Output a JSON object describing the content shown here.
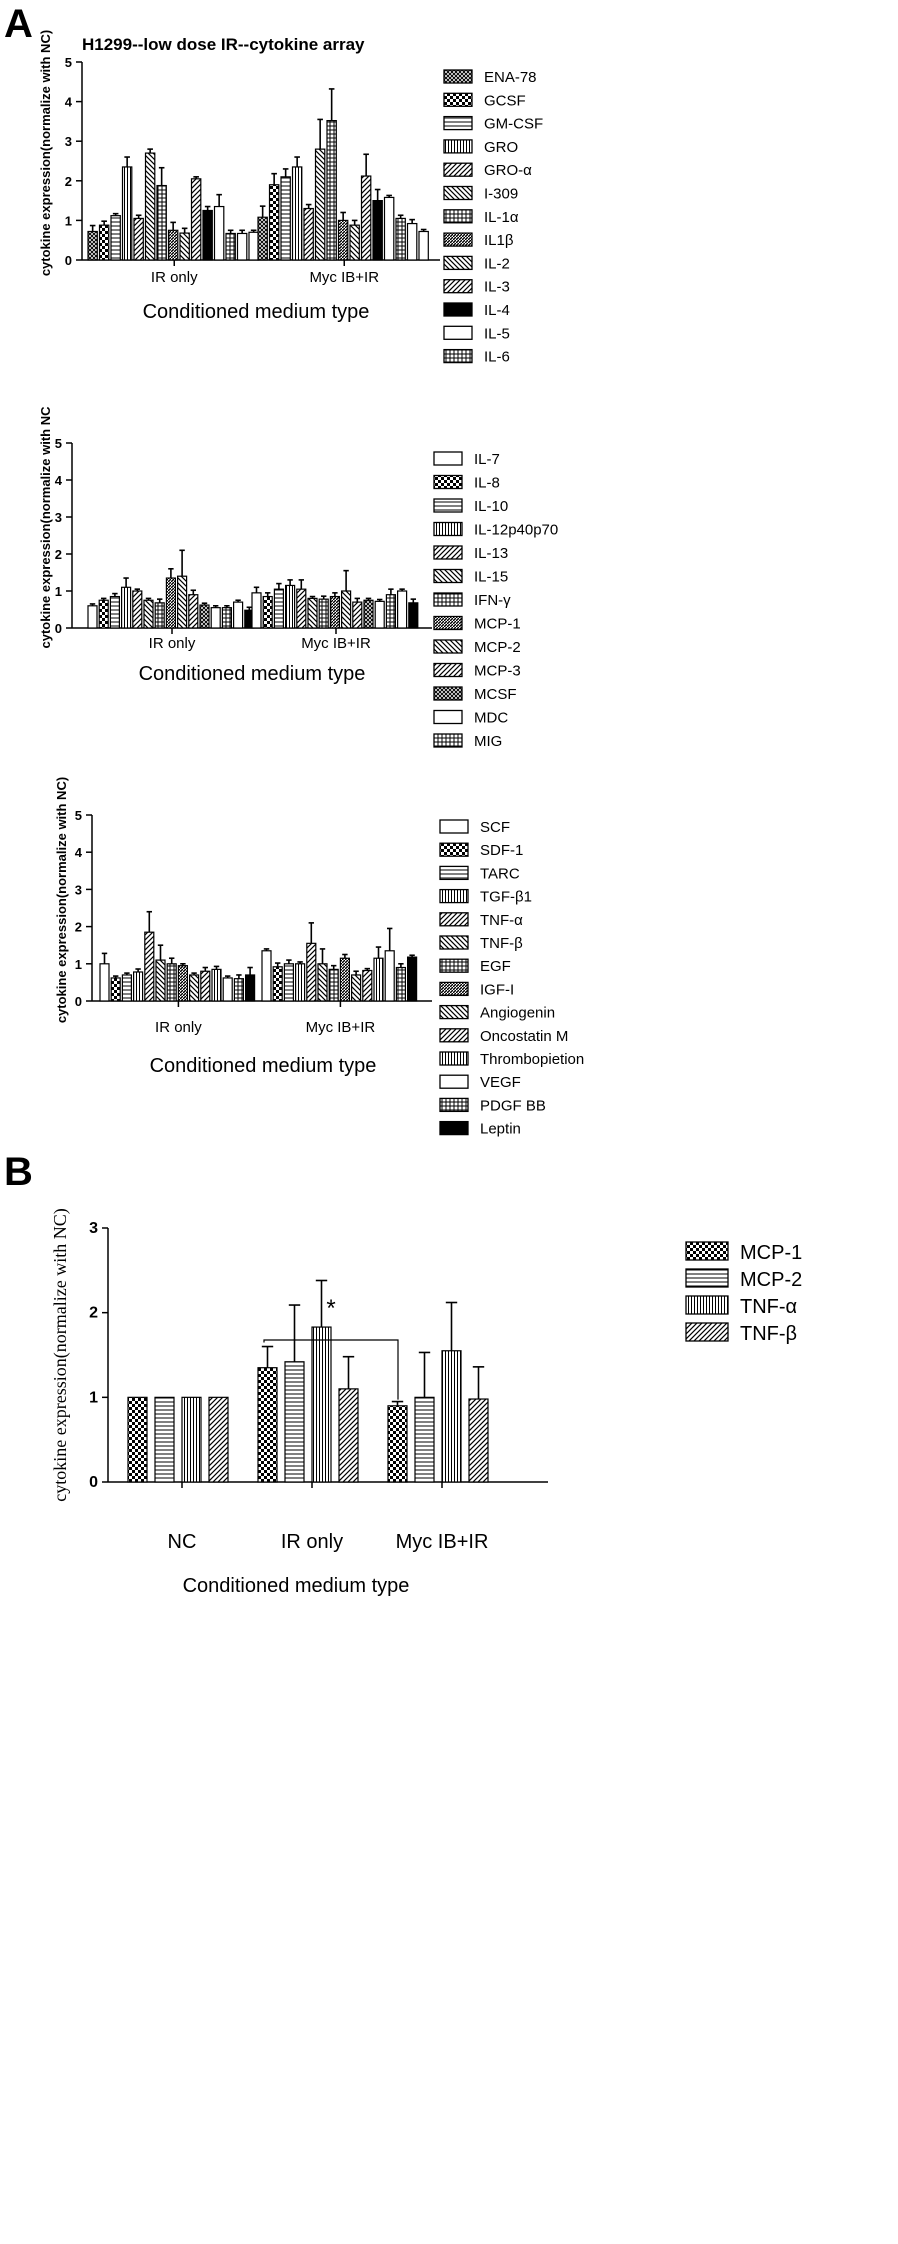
{
  "figure": {
    "panel_a_label": "A",
    "panel_b_label": "B"
  },
  "chart_data": [
    {
      "id": "a1",
      "type": "bar",
      "title": "H1299--low dose IR--cytokine array",
      "ylabel": "cytokine expression(normalize with NC)",
      "xlabel": "Conditioned medium type",
      "ylim": [
        0,
        5
      ],
      "yticks": [
        0,
        1,
        2,
        3,
        4,
        5
      ],
      "categories": [
        "IR only",
        "Myc IB+IR"
      ],
      "legend_position": "right",
      "series": [
        {
          "name": "ENA-78",
          "pattern": "crosshatch",
          "values": [
            0.72,
            1.08
          ],
          "errors": [
            0.15,
            0.28
          ]
        },
        {
          "name": "GCSF",
          "pattern": "checker",
          "values": [
            0.88,
            1.9
          ],
          "errors": [
            0.1,
            0.28
          ]
        },
        {
          "name": "GM-CSF",
          "pattern": "hlines",
          "values": [
            1.12,
            2.1
          ],
          "errors": [
            0.05,
            0.2
          ]
        },
        {
          "name": "GRO",
          "pattern": "vlines",
          "values": [
            2.35,
            2.35
          ],
          "errors": [
            0.25,
            0.25
          ]
        },
        {
          "name": "GRO-α",
          "pattern": "diag",
          "values": [
            1.05,
            1.3
          ],
          "errors": [
            0.08,
            0.1
          ]
        },
        {
          "name": "I-309",
          "pattern": "diagback",
          "values": [
            2.7,
            2.8
          ],
          "errors": [
            0.1,
            0.75
          ]
        },
        {
          "name": "IL-1α",
          "pattern": "grid",
          "values": [
            1.88,
            3.52
          ],
          "errors": [
            0.45,
            0.8
          ]
        },
        {
          "name": "IL1β",
          "pattern": "dense",
          "values": [
            0.75,
            1.0
          ],
          "errors": [
            0.2,
            0.2
          ]
        },
        {
          "name": "IL-2",
          "pattern": "diagback",
          "values": [
            0.68,
            0.88
          ],
          "errors": [
            0.12,
            0.12
          ]
        },
        {
          "name": "IL-3",
          "pattern": "diag",
          "values": [
            2.05,
            2.12
          ],
          "errors": [
            0.05,
            0.55
          ]
        },
        {
          "name": "IL-4",
          "pattern": "solid",
          "values": [
            1.25,
            1.5
          ],
          "errors": [
            0.1,
            0.28
          ]
        },
        {
          "name": "IL-5",
          "pattern": "empty",
          "values": [
            1.35,
            1.58
          ],
          "errors": [
            0.3,
            0.05
          ]
        },
        {
          "name": "IL-6",
          "pattern": "grid",
          "values": [
            0.67,
            1.05
          ],
          "errors": [
            0.08,
            0.08
          ]
        }
      ],
      "extra_bars": [
        {
          "values": [
            0.67,
            0.92
          ],
          "errors": [
            0.08,
            0.1
          ],
          "pattern": "empty"
        },
        {
          "values": [
            0.7,
            0.72
          ],
          "errors": [
            0.05,
            0.05
          ],
          "pattern": "empty"
        }
      ]
    },
    {
      "id": "a2",
      "type": "bar",
      "ylabel": "cytokine expression(normalize with NC",
      "xlabel": "Conditioned medium type",
      "ylim": [
        0,
        5
      ],
      "yticks": [
        0,
        1,
        2,
        3,
        4,
        5
      ],
      "categories": [
        "IR only",
        "Myc IB+IR"
      ],
      "legend_position": "right",
      "series": [
        {
          "name": "IL-7",
          "pattern": "empty",
          "values": [
            0.6,
            0.95
          ],
          "errors": [
            0.05,
            0.15
          ]
        },
        {
          "name": "IL-8",
          "pattern": "checker",
          "values": [
            0.75,
            0.85
          ],
          "errors": [
            0.05,
            0.1
          ]
        },
        {
          "name": "IL-10",
          "pattern": "hlines",
          "values": [
            0.85,
            1.05
          ],
          "errors": [
            0.08,
            0.15
          ]
        },
        {
          "name": "IL-12p40p70",
          "pattern": "vlines",
          "values": [
            1.1,
            1.15
          ],
          "errors": [
            0.25,
            0.15
          ]
        },
        {
          "name": "IL-13",
          "pattern": "diag",
          "values": [
            1.0,
            1.05
          ],
          "errors": [
            0.05,
            0.25
          ]
        },
        {
          "name": "IL-15",
          "pattern": "diagback",
          "values": [
            0.75,
            0.8
          ],
          "errors": [
            0.05,
            0.05
          ]
        },
        {
          "name": "IFN-γ",
          "pattern": "grid",
          "values": [
            0.68,
            0.78
          ],
          "errors": [
            0.1,
            0.08
          ]
        },
        {
          "name": "MCP-1",
          "pattern": "dense",
          "values": [
            1.35,
            0.85
          ],
          "errors": [
            0.25,
            0.1
          ]
        },
        {
          "name": "MCP-2",
          "pattern": "diagback",
          "values": [
            1.4,
            1.0
          ],
          "errors": [
            0.7,
            0.55
          ]
        },
        {
          "name": "MCP-3",
          "pattern": "diag",
          "values": [
            0.9,
            0.7
          ],
          "errors": [
            0.12,
            0.1
          ]
        },
        {
          "name": "MCSF",
          "pattern": "crosshatch",
          "values": [
            0.62,
            0.75
          ],
          "errors": [
            0.05,
            0.05
          ]
        },
        {
          "name": "MDC",
          "pattern": "empty",
          "values": [
            0.55,
            0.72
          ],
          "errors": [
            0.05,
            0.05
          ]
        },
        {
          "name": "MIG",
          "pattern": "grid",
          "values": [
            0.55,
            0.9
          ],
          "errors": [
            0.05,
            0.15
          ]
        }
      ],
      "extra_bars": [
        {
          "values": [
            0.7,
            1.0
          ],
          "errors": [
            0.05,
            0.05
          ],
          "pattern": "empty"
        },
        {
          "values": [
            0.48,
            0.68
          ],
          "errors": [
            0.08,
            0.1
          ],
          "pattern": "solid"
        }
      ]
    },
    {
      "id": "a3",
      "type": "bar",
      "ylabel": "cytokine expression(normalize with NC)",
      "xlabel": "Conditioned medium type",
      "ylim": [
        0,
        5
      ],
      "yticks": [
        0,
        1,
        2,
        3,
        4,
        5
      ],
      "categories": [
        "IR only",
        "Myc IB+IR"
      ],
      "legend_position": "right",
      "series": [
        {
          "name": "SCF",
          "pattern": "empty",
          "values": [
            1.0,
            1.35
          ],
          "errors": [
            0.28,
            0.05
          ]
        },
        {
          "name": "SDF-1",
          "pattern": "checker",
          "values": [
            0.62,
            0.92
          ],
          "errors": [
            0.05,
            0.1
          ]
        },
        {
          "name": "TARC",
          "pattern": "hlines",
          "values": [
            0.7,
            1.0
          ],
          "errors": [
            0.05,
            0.1
          ]
        },
        {
          "name": "TGF-β1",
          "pattern": "vlines",
          "values": [
            0.78,
            1.0
          ],
          "errors": [
            0.08,
            0.05
          ]
        },
        {
          "name": "TNF-α",
          "pattern": "diag",
          "values": [
            1.85,
            1.55
          ],
          "errors": [
            0.55,
            0.55
          ]
        },
        {
          "name": "TNF-β",
          "pattern": "diagback",
          "values": [
            1.1,
            1.0
          ],
          "errors": [
            0.4,
            0.4
          ]
        },
        {
          "name": "EGF",
          "pattern": "grid",
          "values": [
            1.0,
            0.85
          ],
          "errors": [
            0.15,
            0.1
          ]
        },
        {
          "name": "IGF-I",
          "pattern": "dense",
          "values": [
            0.95,
            1.15
          ],
          "errors": [
            0.05,
            0.1
          ]
        },
        {
          "name": "Angiogenin",
          "pattern": "diagback",
          "values": [
            0.7,
            0.7
          ],
          "errors": [
            0.05,
            0.1
          ]
        },
        {
          "name": "Oncostatin M",
          "pattern": "diag",
          "values": [
            0.8,
            0.82
          ],
          "errors": [
            0.1,
            0.05
          ]
        },
        {
          "name": "Thrombopietion",
          "pattern": "vlines",
          "values": [
            0.85,
            1.15
          ],
          "errors": [
            0.08,
            0.3
          ]
        },
        {
          "name": "VEGF",
          "pattern": "empty",
          "values": [
            0.62,
            1.35
          ],
          "errors": [
            0.05,
            0.6
          ]
        },
        {
          "name": "PDGF BB",
          "pattern": "grid",
          "values": [
            0.6,
            0.9
          ],
          "errors": [
            0.1,
            0.1
          ]
        },
        {
          "name": "Leptin",
          "pattern": "solid",
          "values": [
            0.7,
            1.18
          ],
          "errors": [
            0.2,
            0.05
          ]
        }
      ]
    },
    {
      "id": "b",
      "type": "bar",
      "ylabel": "cytokine expression(normalize with NC)",
      "xlabel": "Conditioned medium type",
      "ylim": [
        0,
        3
      ],
      "yticks": [
        0,
        1,
        2,
        3
      ],
      "categories": [
        "NC",
        "IR only",
        "Myc IB+IR"
      ],
      "legend_position": "right",
      "annotation": "*",
      "series": [
        {
          "name": "MCP-1",
          "pattern": "checker",
          "values": [
            1.0,
            1.35,
            0.9
          ],
          "errors": [
            0,
            0.25,
            0.05
          ]
        },
        {
          "name": "MCP-2",
          "pattern": "hlines",
          "values": [
            1.0,
            1.42,
            1.0
          ],
          "errors": [
            0,
            0.67,
            0.53
          ]
        },
        {
          "name": "TNF-α",
          "pattern": "vlines",
          "values": [
            1.0,
            1.83,
            1.55
          ],
          "errors": [
            0,
            0.55,
            0.57
          ]
        },
        {
          "name": "TNF-β",
          "pattern": "diag",
          "values": [
            1.0,
            1.1,
            0.98
          ],
          "errors": [
            0,
            0.38,
            0.38
          ]
        }
      ]
    }
  ]
}
